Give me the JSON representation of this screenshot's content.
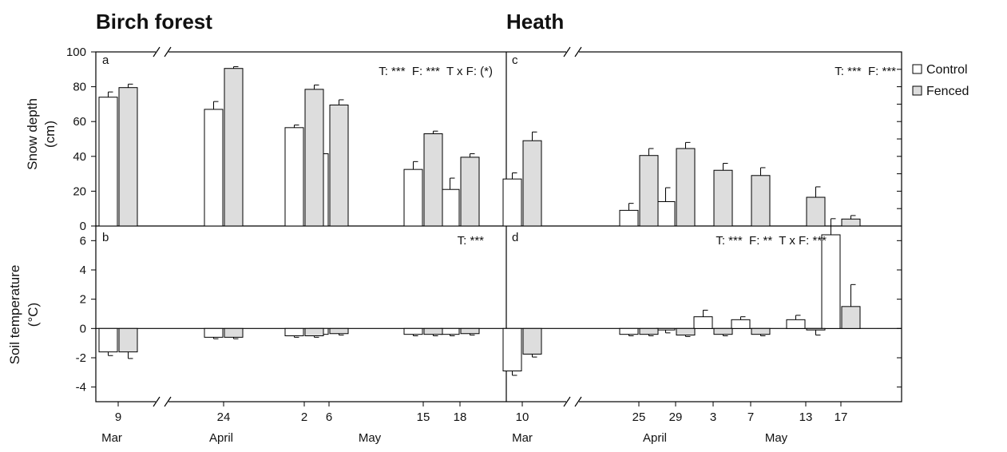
{
  "colors": {
    "control": "#ffffff",
    "fenced": "#dddddd",
    "ink": "#000000"
  },
  "titles": {
    "left": "Birch forest",
    "right": "Heath"
  },
  "ylabels": {
    "top": [
      "Snow depth",
      "(cm)"
    ],
    "bottom": [
      "Soil temperature",
      "(°C)"
    ]
  },
  "legend": {
    "position": "right",
    "items": [
      "Control",
      "Fenced"
    ]
  },
  "panel_labels": [
    "a",
    "b",
    "c",
    "d"
  ],
  "stats": {
    "a": "T: ***  F: ***  T x F: (*)",
    "b": "T: ***",
    "c": "T: ***  F: ***",
    "d": "T: ***  F: **  T x F: ***"
  },
  "chart_data": [
    {
      "type": "bar",
      "panel": "a",
      "site": "Birch forest",
      "x": [
        "9",
        "24",
        "2",
        "6",
        "15",
        "18"
      ],
      "months": [
        [
          "Mar",
          0
        ],
        [
          "April",
          1
        ],
        [
          "May",
          2
        ]
      ],
      "series": [
        {
          "name": "Control",
          "values": [
            74,
            67,
            56.5,
            41.5,
            32.5,
            21
          ],
          "err": [
            3,
            4.5,
            1.5,
            4.5,
            4.5,
            6.5
          ]
        },
        {
          "name": "Fenced",
          "values": [
            79.5,
            90.5,
            78.5,
            69.5,
            53,
            39.5
          ],
          "err": [
            2,
            1,
            2.5,
            3,
            1.5,
            2
          ]
        }
      ],
      "ylabel": "Snow depth (cm)",
      "ylim": [
        0,
        100
      ],
      "yticks": [
        0,
        20,
        40,
        60,
        80,
        100
      ]
    },
    {
      "type": "bar",
      "panel": "b",
      "site": "Birch forest",
      "x": [
        "9",
        "24",
        "2",
        "6",
        "15",
        "18"
      ],
      "series": [
        {
          "name": "Control",
          "values": [
            -1.6,
            -0.6,
            -0.5,
            -0.4,
            -0.4,
            -0.4
          ],
          "err": [
            0.25,
            0.1,
            0.1,
            0.1,
            0.1,
            0.1
          ]
        },
        {
          "name": "Fenced",
          "values": [
            -1.6,
            -0.6,
            -0.5,
            -0.35,
            -0.4,
            -0.35
          ],
          "err": [
            0.45,
            0.1,
            0.1,
            0.1,
            0.1,
            0.1
          ]
        }
      ],
      "ylabel": "Soil temperature (°C)",
      "ylim": [
        -5,
        7
      ],
      "yticks": [
        -4,
        -2,
        0,
        2,
        4,
        6
      ]
    },
    {
      "type": "bar",
      "panel": "c",
      "site": "Heath",
      "x": [
        "10",
        "25",
        "29",
        "3",
        "7",
        "13",
        "17"
      ],
      "months": [
        [
          "Mar",
          0
        ],
        [
          "April",
          1
        ],
        [
          "May",
          3
        ]
      ],
      "series": [
        {
          "name": "Control",
          "values": [
            27,
            9,
            14,
            0,
            0,
            0,
            0
          ],
          "err": [
            3.5,
            4,
            8,
            0,
            0,
            0,
            0
          ]
        },
        {
          "name": "Fenced",
          "values": [
            49,
            40.5,
            44.5,
            32,
            29,
            16.5,
            4
          ],
          "err": [
            5,
            4,
            3.5,
            4,
            4.5,
            6,
            2
          ]
        }
      ],
      "ylim": [
        0,
        100
      ]
    },
    {
      "type": "bar",
      "panel": "d",
      "site": "Heath",
      "x": [
        "10",
        "25",
        "29",
        "3",
        "7",
        "13",
        "17"
      ],
      "series": [
        {
          "name": "Control",
          "values": [
            -2.9,
            -0.4,
            -0.1,
            0.8,
            0.6,
            0.6,
            6.4
          ],
          "err": [
            0.3,
            0.1,
            0.2,
            0.45,
            0.2,
            0.3,
            1.1
          ]
        },
        {
          "name": "Fenced",
          "values": [
            -1.75,
            -0.4,
            -0.45,
            -0.4,
            -0.4,
            -0.1,
            1.5
          ],
          "err": [
            0.2,
            0.1,
            0.1,
            0.1,
            0.1,
            0.35,
            1.5
          ]
        }
      ],
      "ylim": [
        -5,
        7
      ]
    }
  ]
}
